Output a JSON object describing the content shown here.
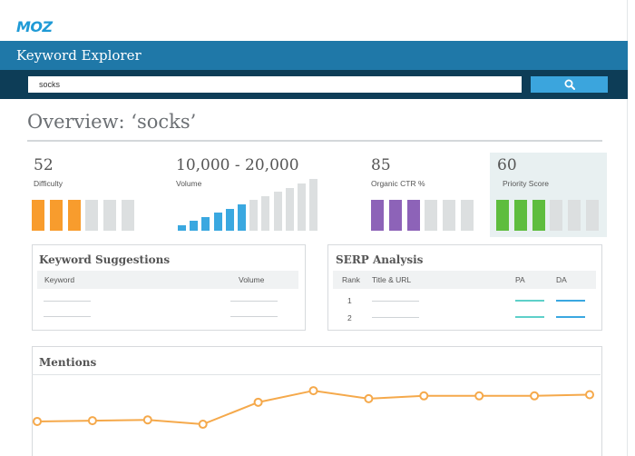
{
  "app": {
    "logo": "MOZ",
    "title": "Keyword Explorer"
  },
  "search": {
    "value": "socks",
    "button_icon": "search-icon"
  },
  "overview": {
    "heading": "Overview: ‘socks’"
  },
  "metrics": {
    "difficulty": {
      "value": "52",
      "label": "Difficulty",
      "color": "#f89c2d",
      "bars_filled": 3,
      "bars_total": 6
    },
    "volume": {
      "value": "10,000 - 20,000",
      "label": "Volume",
      "color": "#3aa8e0",
      "bars_filled": 6,
      "bars_total": 12
    },
    "organic_ctr": {
      "value": "85",
      "label": "Organic CTR %",
      "color": "#8d63b8",
      "bars_filled": 3,
      "bars_total": 6
    },
    "priority": {
      "value": "60",
      "label": "Priority Score",
      "color": "#5ebd3e",
      "bars_filled": 3,
      "bars_total": 6
    }
  },
  "keyword_suggestions": {
    "title": "Keyword Suggestions",
    "columns": [
      "Keyword",
      "Volume"
    ]
  },
  "serp_analysis": {
    "title": "SERP Analysis",
    "columns": [
      "Rank",
      "Title & URL",
      "PA",
      "DA"
    ],
    "ranks": [
      "1",
      "2"
    ]
  },
  "mentions": {
    "title": "Mentions",
    "line_color": "#f5a94b",
    "values": [
      0.16,
      0.18,
      0.2,
      0.09,
      0.64,
      0.93,
      0.73,
      0.8,
      0.8,
      0.8,
      0.83
    ]
  },
  "colors": {
    "bar_empty": "#dcdfe0",
    "brand": "#1f78a8",
    "search_bg": "#0d3d57"
  }
}
